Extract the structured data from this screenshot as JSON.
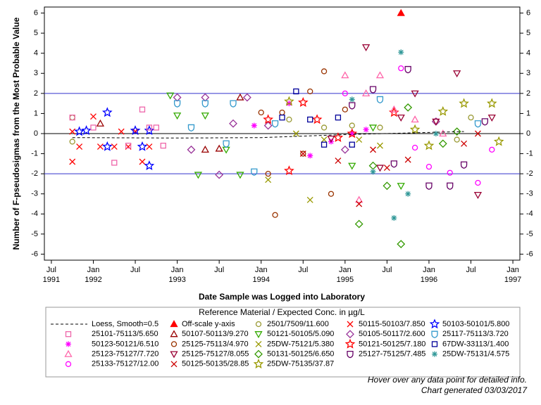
{
  "chart_data": {
    "type": "scatter",
    "y_label": "Number of F-pseudosigmas from the Most Probable Value",
    "x_label": "Date Sample was Logged into Laboratory",
    "legend_title": "Reference Material / Expected Conc. in µg/L",
    "xlim": [
      "1991-06",
      "1997-02"
    ],
    "ylim": [
      -6.3,
      6.3
    ],
    "xticks": [
      {
        "value": "1991-07",
        "label": "Jul"
      },
      {
        "value": "1992-01",
        "label": "Jan"
      },
      {
        "value": "1992-07",
        "label": "Jul"
      },
      {
        "value": "1993-01",
        "label": "Jan"
      },
      {
        "value": "1993-07",
        "label": "Jul"
      },
      {
        "value": "1994-01",
        "label": "Jan"
      },
      {
        "value": "1994-07",
        "label": "Jul"
      },
      {
        "value": "1995-01",
        "label": "Jan"
      },
      {
        "value": "1995-07",
        "label": "Jul"
      },
      {
        "value": "1996-01",
        "label": "Jan"
      },
      {
        "value": "1996-07",
        "label": "Jul"
      },
      {
        "value": "1997-01",
        "label": "Jan"
      }
    ],
    "x_year_labels": [
      {
        "value": "1991-07",
        "label": "1991"
      },
      {
        "value": "1992-01",
        "label": "1992"
      },
      {
        "value": "1993-01",
        "label": "1993"
      },
      {
        "value": "1994-01",
        "label": "1994"
      },
      {
        "value": "1995-01",
        "label": "1995"
      },
      {
        "value": "1996-01",
        "label": "1996"
      },
      {
        "value": "1997-01",
        "label": "1997"
      }
    ],
    "yticks": [
      -6,
      -5,
      -4,
      -3,
      -2,
      -1,
      0,
      1,
      2,
      3,
      4,
      5,
      6
    ],
    "reference_lines": [
      {
        "value": 2,
        "color": "#3333cc"
      },
      {
        "value": 0,
        "color": "#000000"
      },
      {
        "value": -2,
        "color": "#3333cc"
      }
    ],
    "loess": {
      "name": "Loess, Smooth=0.5",
      "color": "#000000",
      "x": [
        "1991-10",
        "1993-01",
        "1994-01",
        "1995-01",
        "1996-06"
      ],
      "values": [
        -0.2,
        -0.22,
        -0.2,
        -0.05,
        0.1
      ]
    },
    "offscale": {
      "name": "Off-scale y-axis",
      "color": "#ff0000",
      "marker": "triangle",
      "x": [
        "1995-09"
      ],
      "values": [
        6
      ]
    },
    "series": [
      {
        "name": "2501/7509/11.600",
        "color": "#999933",
        "marker": "circle",
        "x": [
          "1991-10",
          "1991-10",
          "1994-05",
          "1994-10",
          "1995-02",
          "1995-06",
          "1996-05",
          "1996-07"
        ],
        "values": [
          0.8,
          -0.4,
          0.7,
          0.3,
          0.4,
          0.3,
          -0.3,
          0.8
        ]
      },
      {
        "name": "50115-50103/7.850",
        "color": "#ff0000",
        "marker": "x",
        "x": [
          "1991-10",
          "1991-10",
          "1991-11",
          "1992-01",
          "1992-02",
          "1992-04",
          "1992-05",
          "1992-06",
          "1992-07",
          "1992-08",
          "1992-09"
        ],
        "values": [
          0.1,
          -1.4,
          -0.65,
          0.85,
          -0.65,
          -0.65,
          0.1,
          -0.65,
          0.1,
          -1.4,
          -0.65
        ]
      },
      {
        "name": "50103-50101/5.800",
        "color": "#0000ff",
        "marker": "star",
        "x": [
          "1991-11",
          "1991-12",
          "1992-03",
          "1992-03",
          "1992-07",
          "1992-08",
          "1992-09",
          "1992-09"
        ],
        "values": [
          0.1,
          0.15,
          1.05,
          -0.65,
          0.15,
          -0.65,
          -1.6,
          0.15
        ]
      },
      {
        "name": "25101-75113/5.650",
        "color": "#ee66aa",
        "marker": "square",
        "x": [
          "1991-10",
          "1992-01",
          "1992-04",
          "1992-06",
          "1992-08",
          "1992-09",
          "1992-10",
          "1992-11"
        ],
        "values": [
          0.8,
          0.3,
          -1.45,
          -0.6,
          1.2,
          0.3,
          0.3,
          -0.6
        ]
      },
      {
        "name": "50107-50113/9.270",
        "color": "#990000",
        "marker": "triangle",
        "x": [
          "1992-02",
          "1993-05",
          "1993-07",
          "1993-10"
        ],
        "values": [
          0.5,
          -0.8,
          -0.75,
          1.8
        ]
      },
      {
        "name": "50121-50105/5.090",
        "color": "#33aa00",
        "marker": "triangle-down",
        "x": [
          "1992-12",
          "1993-01",
          "1993-04",
          "1993-05",
          "1993-08",
          "1993-10",
          "1995-02",
          "1995-05",
          "1995-09"
        ],
        "values": [
          1.9,
          0.9,
          -2.05,
          0.9,
          -0.8,
          -2.05,
          -1.6,
          0.3,
          -2.6
        ]
      },
      {
        "name": "50105-50117/2.600",
        "color": "#993399",
        "marker": "diamond",
        "x": [
          "1993-01",
          "1993-03",
          "1993-05",
          "1993-07",
          "1993-09",
          "1993-11",
          "1994-02",
          "1995-01",
          "1996-02"
        ],
        "values": [
          1.8,
          -0.8,
          1.8,
          -2.05,
          0.5,
          1.8,
          0.4,
          -0.8,
          0.6
        ]
      },
      {
        "name": "25117-75113/3.720",
        "color": "#3399cc",
        "marker": "shield",
        "x": [
          "1993-01",
          "1993-03",
          "1993-05",
          "1993-08",
          "1993-09",
          "1993-12",
          "1994-03",
          "1995-06",
          "1996-08"
        ],
        "values": [
          1.5,
          0.3,
          1.5,
          -0.5,
          1.5,
          -1.9,
          0.5,
          1.7,
          0.5
        ]
      },
      {
        "name": "50123-50121/6.510",
        "color": "#ff00ff",
        "marker": "asterisk",
        "x": [
          "1993-12",
          "1994-05",
          "1994-08",
          "1994-11",
          "1995-02",
          "1995-04"
        ],
        "values": [
          0.4,
          1.5,
          -1.1,
          -0.4,
          0.0,
          0.2
        ]
      },
      {
        "name": "25125-75113/4.970",
        "color": "#993300",
        "marker": "circle",
        "x": [
          "1994-01",
          "1994-02",
          "1994-03",
          "1994-04",
          "1994-07",
          "1994-08",
          "1994-10",
          "1994-11",
          "1995-01"
        ],
        "values": [
          1.05,
          -2.0,
          -4.05,
          1.05,
          -1.0,
          2.1,
          3.1,
          -3.0,
          1.2
        ]
      },
      {
        "name": "25DW-75121/5.380",
        "color": "#999900",
        "marker": "x",
        "x": [
          "1994-02",
          "1994-06",
          "1994-08",
          "1994-10",
          "1995-03",
          "1995-06"
        ],
        "values": [
          -2.3,
          0.0,
          -3.3,
          -0.3,
          -0.3,
          -0.6
        ]
      },
      {
        "name": "50121-50125/7.180",
        "color": "#ff0000",
        "marker": "star",
        "x": [
          "1994-02",
          "1994-05",
          "1994-07",
          "1994-09",
          "1994-12",
          "1995-02",
          "1995-08"
        ],
        "values": [
          0.7,
          -1.85,
          1.55,
          0.7,
          -0.2,
          0.0,
          1.05
        ]
      },
      {
        "name": "67DW-33113/1.400",
        "color": "#000099",
        "marker": "square",
        "x": [
          "1994-04",
          "1994-06",
          "1994-08",
          "1994-10",
          "1994-12",
          "1995-02"
        ],
        "values": [
          0.8,
          2.1,
          0.7,
          -0.55,
          0.8,
          -0.55
        ]
      },
      {
        "name": "25123-75127/7.720",
        "color": "#ff66aa",
        "marker": "triangle",
        "x": [
          "1995-01",
          "1995-03",
          "1995-04",
          "1995-06",
          "1995-08",
          "1995-11",
          "1996-03"
        ],
        "values": [
          2.9,
          -3.3,
          2.0,
          2.9,
          1.2,
          0.7,
          0.0
        ]
      },
      {
        "name": "25125-75127/8.055",
        "color": "#990033",
        "marker": "triangle-down",
        "x": [
          "1994-11",
          "1995-04",
          "1995-06",
          "1995-09",
          "1995-11",
          "1996-02",
          "1996-05",
          "1996-08",
          "1996-10"
        ],
        "values": [
          -0.25,
          4.3,
          -1.7,
          0.8,
          2.0,
          0.6,
          3.0,
          -3.05,
          0.8
        ]
      },
      {
        "name": "50131-50125/6.650",
        "color": "#339900",
        "marker": "diamond",
        "x": [
          "1995-03",
          "1995-05",
          "1995-07",
          "1995-09",
          "1995-10",
          "1996-03",
          "1996-05"
        ],
        "values": [
          -4.5,
          -1.6,
          -2.6,
          -5.5,
          1.3,
          -0.5,
          0.1
        ]
      },
      {
        "name": "25127-75125/7.485",
        "color": "#660066",
        "marker": "shield",
        "x": [
          "1995-02",
          "1995-05",
          "1995-08",
          "1995-10",
          "1996-01",
          "1996-04",
          "1996-06",
          "1996-09"
        ],
        "values": [
          1.4,
          2.2,
          -1.5,
          3.2,
          -2.6,
          -2.6,
          -1.55,
          0.6
        ]
      },
      {
        "name": "25DW-75131/4.575",
        "color": "#339999",
        "marker": "asterisk",
        "x": [
          "1995-02",
          "1995-05",
          "1995-08",
          "1995-09",
          "1995-10",
          "1996-02"
        ],
        "values": [
          1.7,
          -1.9,
          -4.2,
          4.05,
          -3.0,
          0.0
        ]
      },
      {
        "name": "25133-75127/12.00",
        "color": "#ff00ff",
        "marker": "circle",
        "x": [
          "1995-01",
          "1995-09",
          "1995-11",
          "1996-01",
          "1996-04",
          "1996-08",
          "1996-10"
        ],
        "values": [
          2.0,
          3.25,
          -0.7,
          -1.65,
          -1.95,
          -2.45,
          -0.8
        ]
      },
      {
        "name": "50125-50135/28.85",
        "color": "#cc0000",
        "marker": "x",
        "x": [
          "1994-07",
          "1994-12",
          "1995-03",
          "1995-05",
          "1995-07",
          "1995-10",
          "1996-06",
          "1996-08"
        ],
        "values": [
          -1.0,
          -1.35,
          -3.5,
          -0.8,
          -1.7,
          -1.3,
          -0.5,
          0.0
        ]
      },
      {
        "name": "25DW-75135/37.87",
        "color": "#999900",
        "marker": "star",
        "x": [
          "1994-05",
          "1995-11",
          "1996-01",
          "1996-03",
          "1996-06",
          "1996-10",
          "1996-11"
        ],
        "values": [
          1.6,
          0.2,
          -0.6,
          1.1,
          1.5,
          1.5,
          -0.4
        ]
      }
    ]
  },
  "footnotes": [
    "Hover over any data point for detailed info.",
    "Chart generated 03/03/2017"
  ]
}
